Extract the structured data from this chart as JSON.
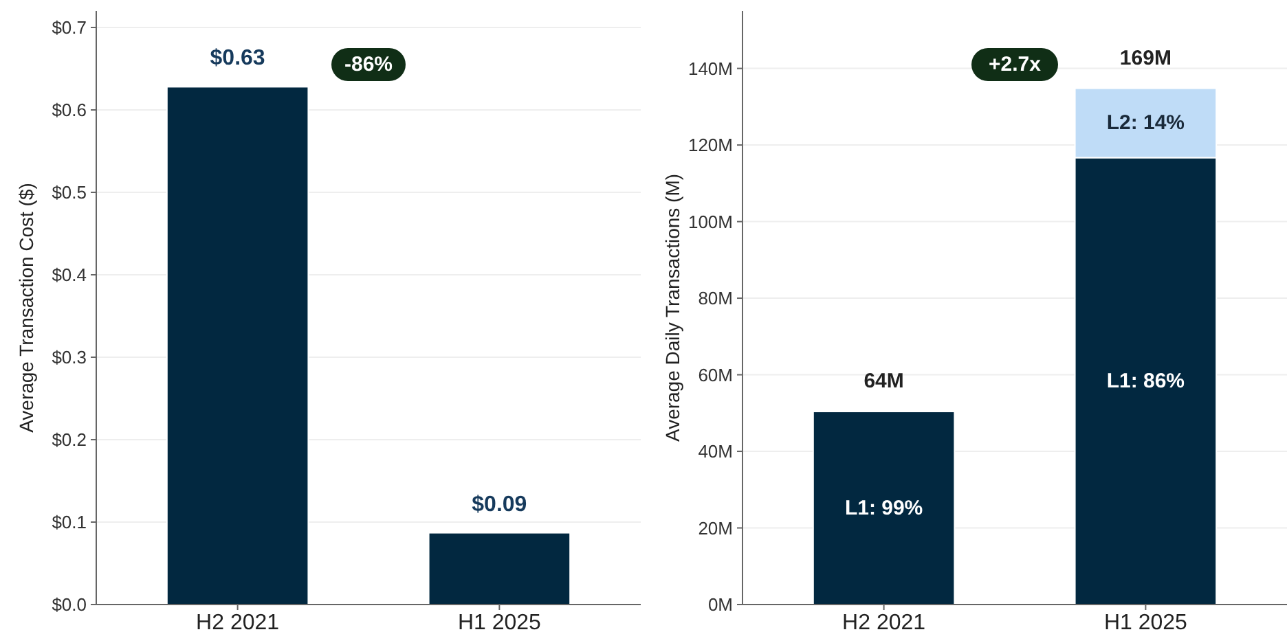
{
  "chart_data": [
    {
      "type": "bar",
      "ylabel": "Average Transaction Cost ($)",
      "categories": [
        "H2 2021",
        "H1 2025"
      ],
      "series": [
        {
          "color": "#022840",
          "values": [
            0.628,
            0.087
          ],
          "value_labels": [
            "$0.63",
            "$0.09"
          ]
        }
      ],
      "ylim": [
        0,
        0.72
      ],
      "yticks": [
        {
          "value": 0,
          "label": "$0.0"
        },
        {
          "value": 0.1,
          "label": "$0.1"
        },
        {
          "value": 0.2,
          "label": "$0.2"
        },
        {
          "value": 0.3,
          "label": "$0.3"
        },
        {
          "value": 0.4,
          "label": "$0.4"
        },
        {
          "value": 0.5,
          "label": "$0.5"
        },
        {
          "value": 0.6,
          "label": "$0.6"
        },
        {
          "value": 0.7,
          "label": "$0.7"
        }
      ],
      "grid": "y",
      "annotations": [
        "-86%"
      ]
    },
    {
      "type": "bar",
      "ylabel": "Average Daily Transactions (M)",
      "categories": [
        "H2 2021",
        "H1 2025"
      ],
      "stacked": true,
      "series": [
        {
          "color": "#022840",
          "values": [
            50.4,
            116.7
          ]
        },
        {
          "color": "#bfdcf7",
          "values": [
            null,
            18.1
          ]
        }
      ],
      "ylim": [
        0,
        155
      ],
      "yticks": [
        {
          "value": 0,
          "label": "0M"
        },
        {
          "value": 20,
          "label": "20M"
        },
        {
          "value": 40,
          "label": "40M"
        },
        {
          "value": 60,
          "label": "60M"
        },
        {
          "value": 80,
          "label": "80M"
        },
        {
          "value": 100,
          "label": "100M"
        },
        {
          "value": 120,
          "label": "120M"
        },
        {
          "value": 140,
          "label": "140M"
        }
      ],
      "grid": "y",
      "annotations": [
        "+2.7x",
        "64M",
        "169M",
        "L1: 99%",
        "L1: 86%",
        "L2: 14%"
      ]
    }
  ]
}
